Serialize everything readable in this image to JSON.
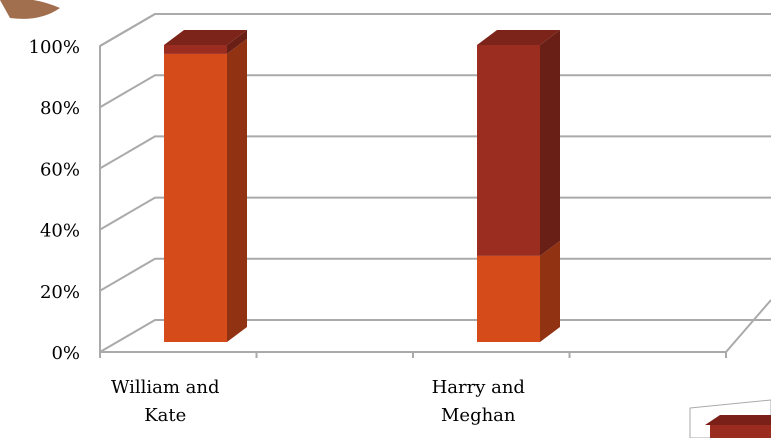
{
  "chart_data": {
    "type": "stacked_bar_3d",
    "categories": [
      "William and Kate",
      null,
      "Harry and Meghan",
      null
    ],
    "series": [
      {
        "color": "#d54b1a",
        "values": [
          97,
          null,
          29,
          null
        ]
      },
      {
        "color": "#9b2d20",
        "values": [
          3,
          null,
          71,
          null
        ]
      }
    ],
    "ylim": [
      0,
      100
    ],
    "yticks": [
      {
        "value": 0,
        "label": "0%"
      },
      {
        "value": 20,
        "label": "20%"
      },
      {
        "value": 40,
        "label": "40%"
      },
      {
        "value": 60,
        "label": "60%"
      },
      {
        "value": 80,
        "label": "80%"
      },
      {
        "value": 100,
        "label": "100%"
      }
    ],
    "grid": true
  }
}
